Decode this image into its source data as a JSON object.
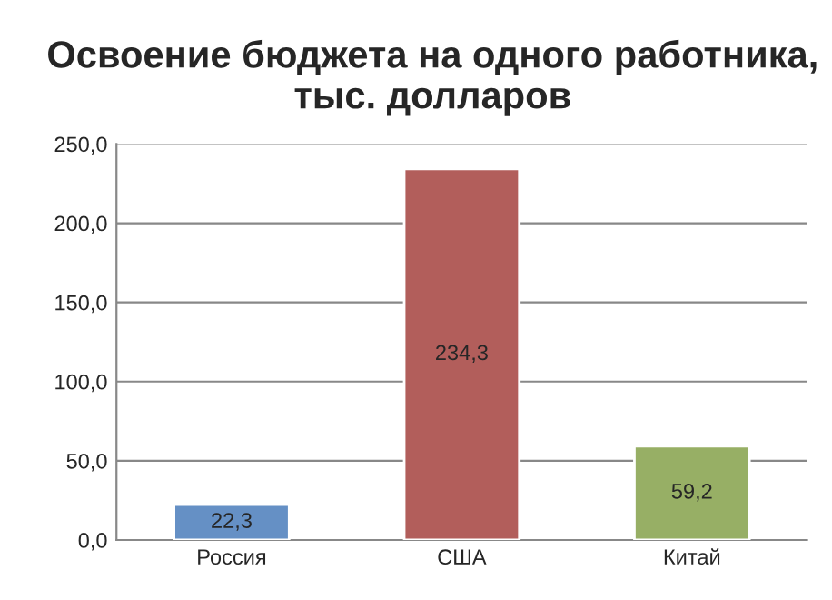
{
  "chart_data": {
    "type": "bar",
    "title": "Освоение бюджета на одного работника, тыс. долларов",
    "categories": [
      "Россия",
      "США",
      "Китай"
    ],
    "values": [
      22.3,
      234.3,
      59.2
    ],
    "colors": [
      "#558ed5",
      "#c0504d",
      "#9bbb59"
    ],
    "value_labels": [
      "22,3",
      "234,3",
      "59,2"
    ],
    "ylim": [
      0,
      250
    ],
    "yticks": [
      {
        "value": 0,
        "label": "0,0"
      },
      {
        "value": 50,
        "label": "50,0"
      },
      {
        "value": 100,
        "label": "100,0"
      },
      {
        "value": 150,
        "label": "150,0"
      },
      {
        "value": 200,
        "label": "200,0"
      },
      {
        "value": 250,
        "label": "250,0"
      }
    ],
    "grid": "y"
  }
}
